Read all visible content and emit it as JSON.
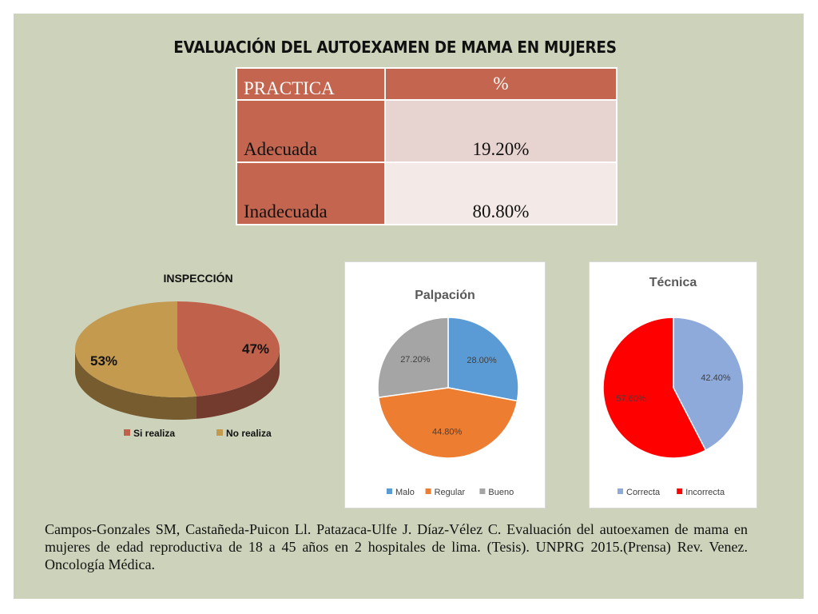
{
  "title": "EVALUACIÓN DEL AUTOEXAMEN DE MAMA EN MUJERES",
  "table": {
    "headers": [
      "PRACTICA",
      "%"
    ],
    "rows": [
      {
        "label": "Adecuada",
        "value": "19.20%"
      },
      {
        "label": "Inadecuada",
        "value": "80.80%"
      }
    ]
  },
  "chart_data": [
    {
      "type": "pie",
      "title": "INSPECCIÓN",
      "style": "3d",
      "categories": [
        "Si realiza",
        "No realiza"
      ],
      "values": [
        47,
        53
      ],
      "labels": [
        "47%",
        "53%"
      ],
      "colors": [
        "#c0614c",
        "#c49a4f"
      ],
      "legend": "bottom"
    },
    {
      "type": "pie",
      "title": "Palpación",
      "categories": [
        "Malo",
        "Regular",
        "Bueno"
      ],
      "values": [
        28.0,
        44.8,
        27.2
      ],
      "labels": [
        "28.00%",
        "44.80%",
        "27.20%"
      ],
      "colors": [
        "#5b9bd5",
        "#ed7d31",
        "#a5a5a5"
      ],
      "legend": "bottom"
    },
    {
      "type": "pie",
      "title": "Técnica",
      "categories": [
        "Correcta",
        "Incorrecta"
      ],
      "values": [
        42.4,
        57.6
      ],
      "labels": [
        "42.40%",
        "57.60%"
      ],
      "colors": [
        "#8eaadb",
        "#ff0000"
      ],
      "legend": "bottom"
    }
  ],
  "citation": "Campos-Gonzales SM, Castañeda-Puicon Ll. Patazaca-Ulfe J. Díaz-Vélez C. Evaluación del autoexamen de mama en mujeres de edad reproductiva de 18 a 45 años en 2 hospitales de lima. (Tesis). UNPRG 2015.(Prensa) Rev. Venez. Oncología Médica."
}
